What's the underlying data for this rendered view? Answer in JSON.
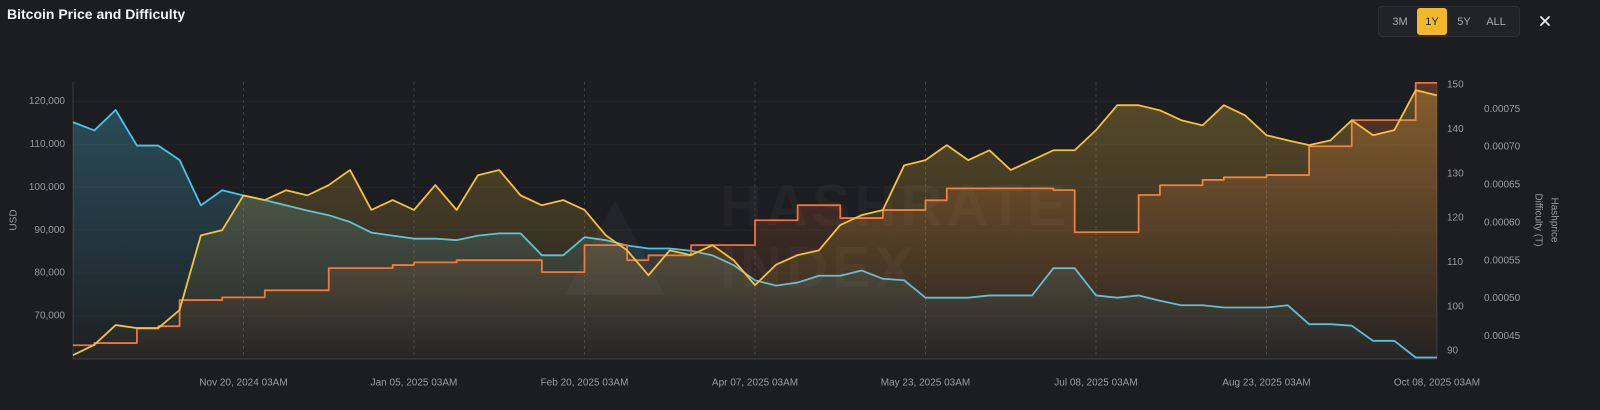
{
  "title": "Bitcoin Price and Difficulty",
  "controls": {
    "ranges": [
      "3M",
      "1Y",
      "5Y",
      "ALL"
    ],
    "active": "1Y"
  },
  "chart_data": {
    "type": "line",
    "watermark": [
      "HASHRATE",
      "INDEX"
    ],
    "ylabel": "USD",
    "y2label": "Difficulty (T)",
    "y3label": "Hashprice",
    "categories": [
      null,
      null,
      null,
      null,
      null,
      null,
      null,
      null,
      "Nov 20, 2024 03AM",
      null,
      null,
      null,
      null,
      null,
      null,
      null,
      "Jan 05, 2025 03AM",
      null,
      null,
      null,
      null,
      null,
      null,
      null,
      "Feb 20, 2025 03AM",
      null,
      null,
      null,
      null,
      null,
      null,
      null,
      "Apr 07, 2025 03AM",
      null,
      null,
      null,
      null,
      null,
      null,
      null,
      "May 23, 2025 03AM",
      null,
      null,
      null,
      null,
      null,
      null,
      null,
      "Jul 08, 2025 03AM",
      null,
      null,
      null,
      null,
      null,
      null,
      null,
      "Aug 23, 2025 03AM",
      null,
      null,
      null,
      null,
      null,
      null,
      null,
      "Oct 08, 2025 03AM"
    ],
    "ylim": [
      60000,
      124500
    ],
    "yticks": [
      {
        "value": 70000,
        "label": "70,000"
      },
      {
        "value": 80000,
        "label": "80,000"
      },
      {
        "value": 90000,
        "label": "90,000"
      },
      {
        "value": 100000,
        "label": "100,000"
      },
      {
        "value": 110000,
        "label": "110,000"
      },
      {
        "value": 120000,
        "label": "120,000"
      }
    ],
    "y2lim": [
      88.2,
      150.7
    ],
    "y2ticks": [
      90,
      100,
      110,
      120,
      130,
      140,
      150
    ],
    "y3lim": [
      0.00042,
      0.000786
    ],
    "y3ticks": [
      0.00045,
      {
        "value": 0.0005,
        "label": "0.00050"
      },
      0.00055,
      {
        "value": 0.0006,
        "label": "0.00060"
      },
      0.00065,
      {
        "value": 0.0007,
        "label": "0.00070"
      },
      0.00075
    ],
    "grid": true,
    "series": [
      {
        "color": "#4cc3e8",
        "axis": "y3",
        "values": [
          0.000733,
          0.000722,
          0.000749,
          0.000702,
          0.000702,
          0.000683,
          0.000623,
          0.000643,
          0.000636,
          0.00063,
          0.000623,
          0.000616,
          0.00061,
          0.000601,
          0.000587,
          0.000583,
          0.000579,
          0.000579,
          0.000577,
          0.000583,
          0.000586,
          0.000586,
          0.000557,
          0.000557,
          0.000581,
          0.000577,
          0.00057,
          0.000566,
          0.000566,
          0.000563,
          0.000557,
          0.000544,
          0.000524,
          0.000517,
          0.000521,
          0.00053,
          0.00053,
          0.000537,
          0.000526,
          0.000524,
          0.000501,
          0.000501,
          0.000501,
          0.000504,
          0.000504,
          0.000504,
          0.00054,
          0.00054,
          0.000504,
          0.000501,
          0.000504,
          0.000497,
          0.000491,
          0.000491,
          0.000488,
          0.000488,
          0.000488,
          0.000491,
          0.000466,
          0.000466,
          0.000464,
          0.000444,
          0.000444,
          0.000422,
          0.000422
        ]
      },
      {
        "color": "#ef7338",
        "axis": "y2",
        "step": true,
        "values": [
          91.3,
          91.8,
          91.8,
          95.1,
          95.6,
          101.5,
          101.5,
          102.1,
          102.1,
          103.7,
          103.7,
          103.7,
          108.7,
          108.7,
          108.7,
          109.4,
          110.0,
          110.0,
          110.5,
          110.5,
          110.5,
          110.5,
          107.8,
          107.8,
          113.9,
          113.9,
          110.5,
          111.6,
          111.6,
          113.9,
          113.9,
          113.9,
          119.5,
          119.5,
          122.9,
          122.9,
          120.0,
          120.0,
          121.8,
          121.8,
          124.0,
          126.7,
          126.7,
          126.7,
          126.7,
          126.7,
          126.3,
          116.8,
          116.8,
          116.8,
          125.2,
          127.4,
          127.4,
          128.6,
          129.2,
          129.2,
          129.7,
          129.7,
          136.2,
          136.2,
          142.1,
          142.1,
          142.1,
          150.5,
          150.5
        ]
      },
      {
        "color": "#f4c13f",
        "axis": "y",
        "values": [
          60900,
          63300,
          67900,
          67200,
          67200,
          71400,
          88800,
          90000,
          98100,
          97000,
          99300,
          98100,
          100500,
          104000,
          94700,
          97000,
          94700,
          100500,
          94700,
          102800,
          104000,
          98100,
          95800,
          97000,
          94700,
          88800,
          85300,
          79500,
          85300,
          84200,
          86500,
          83000,
          77200,
          82000,
          84200,
          85300,
          91200,
          93500,
          94700,
          105100,
          106300,
          109800,
          106300,
          108600,
          104000,
          106300,
          108600,
          108600,
          113300,
          119100,
          119100,
          117900,
          115600,
          114400,
          119100,
          116700,
          112100,
          110900,
          109800,
          110900,
          115600,
          112100,
          113300,
          122600,
          121400
        ]
      }
    ]
  }
}
